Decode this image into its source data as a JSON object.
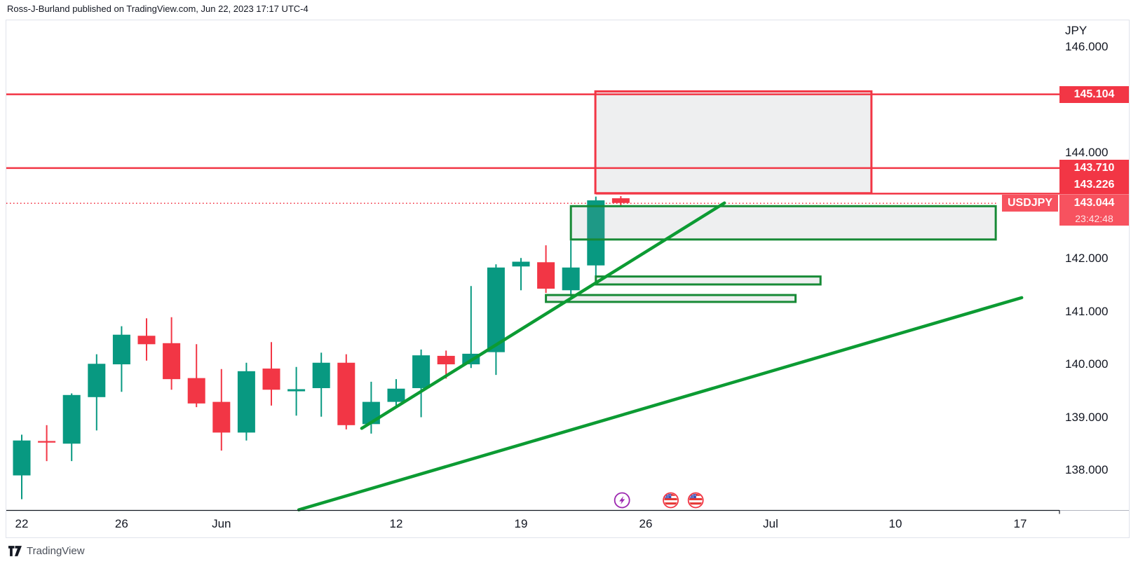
{
  "header": {
    "attribution": "Ross-J-Burland published on TradingView.com, Jun 22, 2023 17:17 UTC-4"
  },
  "footer": {
    "logo_text": "TradingView"
  },
  "price_axis": {
    "currency_label": "JPY",
    "ticks": [
      {
        "label": "146.000",
        "price": 146.0
      },
      {
        "label": "144.000",
        "price": 144.0
      },
      {
        "label": "142.000",
        "price": 142.0
      },
      {
        "label": "141.000",
        "price": 141.0
      },
      {
        "label": "140.000",
        "price": 140.0
      },
      {
        "label": "139.000",
        "price": 139.0
      },
      {
        "label": "138.000",
        "price": 138.0
      }
    ],
    "level_tags": [
      {
        "label": "145.104",
        "price": 145.104,
        "color": "#f23645"
      },
      {
        "label": "143.710",
        "price": 143.71,
        "color": "#f23645"
      },
      {
        "label": "143.226",
        "price": 143.226,
        "color": "#f23645"
      }
    ],
    "current": {
      "symbol": "USDJPY",
      "price_label": "143.044",
      "price": 143.044,
      "countdown": "23:42:48",
      "color": "#f7525f"
    }
  },
  "time_axis": {
    "ticks": [
      {
        "label": "22",
        "day": 0
      },
      {
        "label": "26",
        "day": 4
      },
      {
        "label": "Jun",
        "day": 8
      },
      {
        "label": "12",
        "day": 15
      },
      {
        "label": "19",
        "day": 20
      },
      {
        "label": "26",
        "day": 25
      },
      {
        "label": "Jul",
        "day": 30
      },
      {
        "label": "10",
        "day": 35
      },
      {
        "label": "17",
        "day": 40
      }
    ]
  },
  "chart_data": {
    "type": "candlestick",
    "symbol": "USDJPY",
    "timeframe": "1D",
    "ylabel": "JPY",
    "ylim": [
      137.2,
      146.5
    ],
    "grid": false,
    "colors": {
      "up": "#089981",
      "down": "#f23645",
      "trendline": "#0c9b33",
      "zone_red": "#f23645",
      "zone_green": "#178a36",
      "zone_fill": "rgba(150,153,163,0.16)",
      "current_line": "#f23645"
    },
    "candles": [
      {
        "date": "May 22",
        "o": 137.9,
        "h": 138.67,
        "l": 137.45,
        "c": 138.56
      },
      {
        "date": "May 23",
        "o": 138.55,
        "h": 138.85,
        "l": 138.17,
        "c": 138.52
      },
      {
        "date": "May 24",
        "o": 138.5,
        "h": 139.45,
        "l": 138.17,
        "c": 139.42
      },
      {
        "date": "May 25",
        "o": 139.38,
        "h": 140.19,
        "l": 138.75,
        "c": 140.01
      },
      {
        "date": "May 26",
        "o": 140.0,
        "h": 140.72,
        "l": 139.48,
        "c": 140.56
      },
      {
        "date": "May 29",
        "o": 140.54,
        "h": 140.87,
        "l": 140.07,
        "c": 140.38
      },
      {
        "date": "May 30",
        "o": 140.4,
        "h": 140.89,
        "l": 139.52,
        "c": 139.72
      },
      {
        "date": "May 31",
        "o": 139.74,
        "h": 140.38,
        "l": 139.19,
        "c": 139.26
      },
      {
        "date": "Jun 1",
        "o": 139.29,
        "h": 139.91,
        "l": 138.37,
        "c": 138.71
      },
      {
        "date": "Jun 2",
        "o": 138.71,
        "h": 140.03,
        "l": 138.56,
        "c": 139.87
      },
      {
        "date": "Jun 5",
        "o": 139.92,
        "h": 140.42,
        "l": 139.22,
        "c": 139.52
      },
      {
        "date": "Jun 6",
        "o": 139.49,
        "h": 139.95,
        "l": 139.03,
        "c": 139.53
      },
      {
        "date": "Jun 7",
        "o": 139.55,
        "h": 140.22,
        "l": 139.01,
        "c": 140.03
      },
      {
        "date": "Jun 8",
        "o": 140.03,
        "h": 140.19,
        "l": 138.77,
        "c": 138.85
      },
      {
        "date": "Jun 9",
        "o": 138.87,
        "h": 139.67,
        "l": 138.69,
        "c": 139.29
      },
      {
        "date": "Jun 12",
        "o": 139.29,
        "h": 139.72,
        "l": 139.17,
        "c": 139.54
      },
      {
        "date": "Jun 13",
        "o": 139.55,
        "h": 140.28,
        "l": 139.0,
        "c": 140.17
      },
      {
        "date": "Jun 14",
        "o": 140.16,
        "h": 140.26,
        "l": 139.73,
        "c": 140.0
      },
      {
        "date": "Jun 15",
        "o": 140.0,
        "h": 141.48,
        "l": 139.93,
        "c": 140.2
      },
      {
        "date": "Jun 16",
        "o": 140.23,
        "h": 141.89,
        "l": 139.8,
        "c": 141.83
      },
      {
        "date": "Jun 19",
        "o": 141.85,
        "h": 142.01,
        "l": 141.4,
        "c": 141.94
      },
      {
        "date": "Jun 20",
        "o": 141.93,
        "h": 142.25,
        "l": 141.35,
        "c": 141.43
      },
      {
        "date": "Jun 21",
        "o": 141.4,
        "h": 142.34,
        "l": 141.28,
        "c": 141.83
      },
      {
        "date": "Jun 22",
        "o": 141.87,
        "h": 143.17,
        "l": 141.53,
        "c": 143.1
      },
      {
        "date": "Jun 23",
        "o": 143.14,
        "h": 143.18,
        "l": 143.0,
        "c": 143.05
      }
    ],
    "horizontal_levels": [
      {
        "price": 145.104,
        "full_width": true
      },
      {
        "price": 143.71,
        "full_width": true
      },
      {
        "price": 143.226,
        "full_width": false,
        "start_day": 23
      }
    ],
    "current_price_line": {
      "price": 143.044,
      "style": "dotted"
    },
    "zones": [
      {
        "kind": "supply",
        "border": "#f23645",
        "day_from": 22.98,
        "day_to": 34.04,
        "price_top": 145.16,
        "price_bottom": 143.235
      },
      {
        "kind": "demand",
        "border": "#178a36",
        "day_from": 22.0,
        "day_to": 39.02,
        "price_top": 142.99,
        "price_bottom": 142.36
      },
      {
        "kind": "demand",
        "border": "#178a36",
        "day_from": 23.0,
        "day_to": 32.0,
        "price_top": 141.66,
        "price_bottom": 141.51
      },
      {
        "kind": "demand",
        "border": "#178a36",
        "day_from": 21.0,
        "day_to": 31.0,
        "price_top": 141.31,
        "price_bottom": 141.18
      }
    ],
    "trendlines": [
      {
        "day_from": 13.62,
        "price_from": 138.79,
        "day_to": 28.15,
        "price_to": 143.05
      },
      {
        "day_from": 11.1,
        "price_from": 137.25,
        "day_to": 40.06,
        "price_to": 141.26
      }
    ],
    "event_icons": [
      {
        "type": "lightning",
        "day": 24.05,
        "color": "#9c27b0"
      },
      {
        "type": "us-flag",
        "day": 26.0,
        "color": "#f23645"
      },
      {
        "type": "us-flag",
        "day": 27.0,
        "color": "#f23645"
      }
    ]
  }
}
